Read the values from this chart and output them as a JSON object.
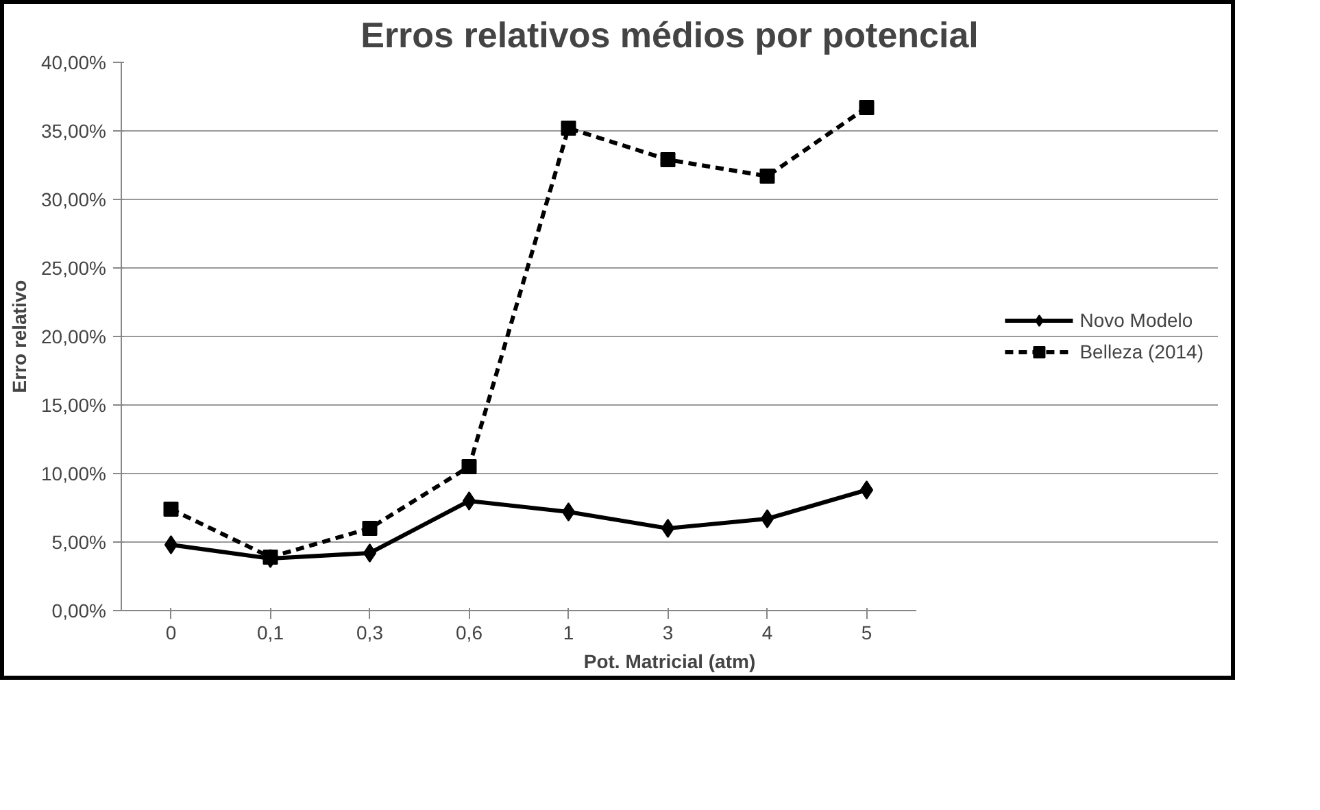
{
  "chart_data": {
    "type": "line",
    "title": "Erros relativos médios por potencial",
    "xlabel": "Pot. Matricial (atm)",
    "ylabel": "Erro relativo",
    "categories": [
      "0",
      "0,1",
      "0,3",
      "0,6",
      "1",
      "3",
      "4",
      "5"
    ],
    "series": [
      {
        "name": "Novo Modelo",
        "color": "#000000",
        "marker": "diamond",
        "line_style": "solid",
        "values": [
          4.8,
          3.8,
          4.2,
          8.0,
          7.2,
          6.0,
          6.7,
          8.8
        ]
      },
      {
        "name": "Belleza (2014)",
        "color": "#000000",
        "marker": "square",
        "line_style": "dashed",
        "values": [
          7.4,
          3.9,
          6.0,
          10.5,
          35.2,
          32.9,
          31.7,
          36.7
        ]
      }
    ],
    "ylim": [
      0,
      40
    ],
    "yticks": [
      {
        "value": 0,
        "label": "0,00%"
      },
      {
        "value": 5,
        "label": "5,00%"
      },
      {
        "value": 10,
        "label": "10,00%"
      },
      {
        "value": 15,
        "label": "15,00%"
      },
      {
        "value": 20,
        "label": "20,00%"
      },
      {
        "value": 25,
        "label": "25,00%"
      },
      {
        "value": 30,
        "label": "30,00%"
      },
      {
        "value": 35,
        "label": "35,00%"
      },
      {
        "value": 40,
        "label": "40,00%"
      }
    ],
    "grid": "y",
    "legend": "right"
  }
}
